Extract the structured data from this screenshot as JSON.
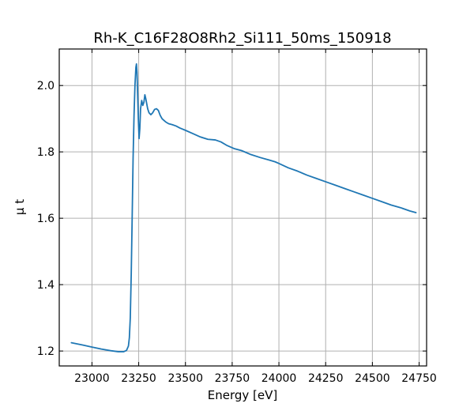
{
  "chart_data": {
    "type": "line",
    "title": "Rh-K_C16F28O8Rh2_Si111_50ms_150918",
    "xlabel": "Energy [eV]",
    "ylabel": "μ t",
    "xlim": [
      22825,
      24790
    ],
    "ylim": [
      1.155,
      2.11
    ],
    "grid": true,
    "legend": "none",
    "colors": {
      "line": "#1f77b4"
    },
    "xticks": [
      23000,
      23250,
      23500,
      23750,
      24000,
      24250,
      24500,
      24750
    ],
    "xtick_labels": [
      "23000",
      "23250",
      "23500",
      "23750",
      "24000",
      "24250",
      "24500",
      "24750"
    ],
    "yticks": [
      1.2,
      1.4,
      1.6,
      1.8,
      2.0
    ],
    "ytick_labels": [
      "1.2",
      "1.4",
      "1.6",
      "1.8",
      "2.0"
    ],
    "series": [
      {
        "x": [
          22890,
          22950,
          23000,
          23050,
          23100,
          23140,
          23170,
          23185,
          23195,
          23200,
          23205,
          23210,
          23215,
          23220,
          23225,
          23230,
          23235,
          23238,
          23241,
          23244,
          23248,
          23252,
          23256,
          23260,
          23266,
          23272,
          23278,
          23283,
          23288,
          23293,
          23298,
          23305,
          23315,
          23325,
          23335,
          23345,
          23355,
          23365,
          23375,
          23385,
          23395,
          23410,
          23430,
          23450,
          23470,
          23500,
          23540,
          23580,
          23620,
          23660,
          23690,
          23720,
          23760,
          23800,
          23850,
          23900,
          23950,
          23980,
          24000,
          24050,
          24100,
          24150,
          24200,
          24250,
          24300,
          24350,
          24400,
          24450,
          24500,
          24550,
          24600,
          24650,
          24700,
          24733
        ],
        "y": [
          1.225,
          1.218,
          1.212,
          1.206,
          1.201,
          1.198,
          1.198,
          1.202,
          1.215,
          1.24,
          1.3,
          1.43,
          1.6,
          1.78,
          1.91,
          2.0,
          2.055,
          2.065,
          2.04,
          1.98,
          1.9,
          1.84,
          1.87,
          1.93,
          1.955,
          1.94,
          1.95,
          1.972,
          1.96,
          1.945,
          1.93,
          1.918,
          1.912,
          1.918,
          1.928,
          1.93,
          1.925,
          1.91,
          1.9,
          1.895,
          1.89,
          1.885,
          1.882,
          1.878,
          1.872,
          1.865,
          1.855,
          1.845,
          1.838,
          1.836,
          1.83,
          1.82,
          1.81,
          1.804,
          1.792,
          1.783,
          1.775,
          1.77,
          1.765,
          1.752,
          1.742,
          1.73,
          1.72,
          1.71,
          1.7,
          1.69,
          1.68,
          1.67,
          1.66,
          1.65,
          1.64,
          1.632,
          1.622,
          1.617
        ]
      }
    ]
  }
}
